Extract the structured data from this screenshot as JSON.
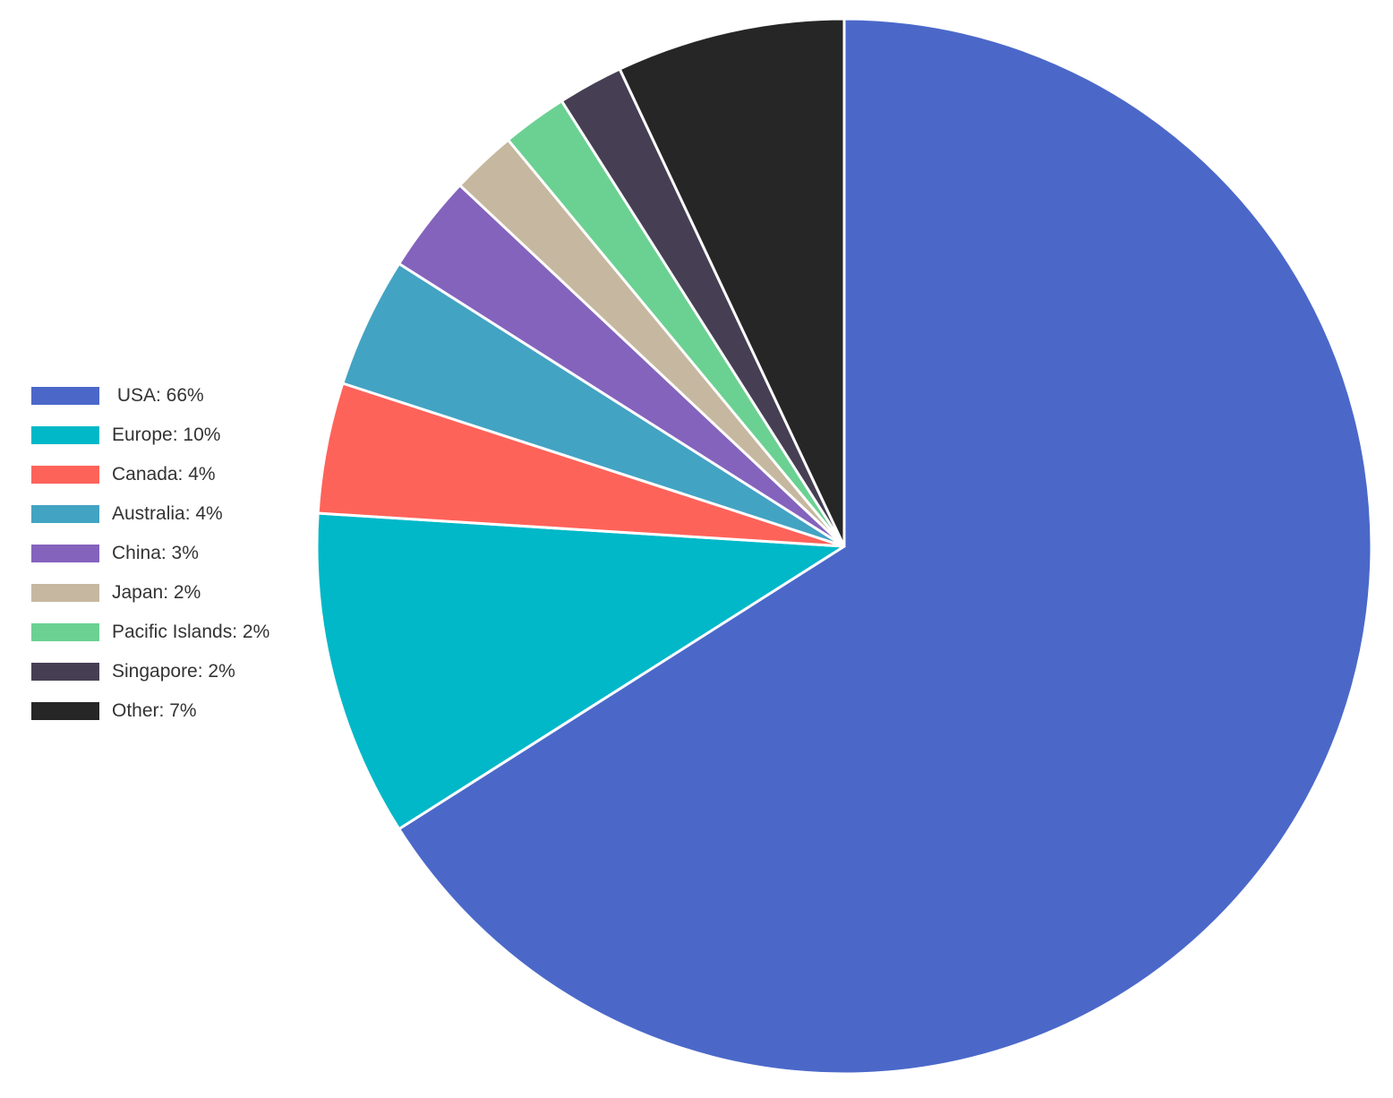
{
  "chart_data": {
    "type": "pie",
    "title": "",
    "legend_position": "left",
    "start_angle": "12 o'clock",
    "direction": "clockwise",
    "slices": [
      {
        "label": "USA",
        "legend_text": " USA: 66%",
        "value": 66,
        "color": "#4b68c9"
      },
      {
        "label": "Europe",
        "legend_text": "Europe: 10%",
        "value": 10,
        "color": "#00b8c8"
      },
      {
        "label": "Canada",
        "legend_text": "Canada: 4%",
        "value": 4,
        "color": "#fe635a"
      },
      {
        "label": "Australia",
        "legend_text": "Australia: 4%",
        "value": 4,
        "color": "#43a3c3"
      },
      {
        "label": "China",
        "legend_text": "China: 3%",
        "value": 3,
        "color": "#8463bd"
      },
      {
        "label": "Japan",
        "legend_text": "Japan: 2%",
        "value": 2,
        "color": "#c6b8a0"
      },
      {
        "label": "Pacific Islands",
        "legend_text": "Pacific Islands: 2%",
        "value": 2,
        "color": "#6bd192"
      },
      {
        "label": "Singapore",
        "legend_text": "Singapore: 2%",
        "value": 2,
        "color": "#463f54"
      },
      {
        "label": "Other",
        "legend_text": "Other: 7%",
        "value": 7,
        "color": "#262626"
      }
    ]
  }
}
